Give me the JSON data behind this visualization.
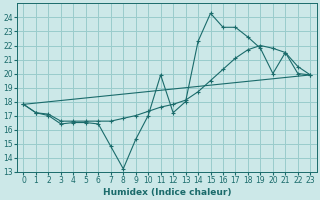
{
  "xlabel": "Humidex (Indice chaleur)",
  "bg_color": "#cce8e8",
  "grid_color": "#99cccc",
  "line_color": "#1a6b6b",
  "line1_x": [
    0,
    1,
    2,
    3,
    4,
    5,
    6,
    7,
    8,
    9,
    10,
    11,
    12,
    13,
    14,
    15,
    16,
    17,
    18,
    19,
    20,
    21,
    22,
    23
  ],
  "line1_y": [
    17.8,
    17.2,
    17.0,
    16.4,
    16.5,
    16.5,
    16.4,
    14.8,
    13.2,
    15.3,
    17.0,
    19.9,
    17.2,
    18.0,
    22.3,
    24.3,
    23.3,
    23.3,
    22.6,
    21.8,
    20.0,
    21.5,
    20.0,
    19.9
  ],
  "line2_x": [
    0,
    1,
    2,
    3,
    4,
    5,
    6,
    7,
    8,
    9,
    10,
    11,
    12,
    13,
    14,
    15,
    16,
    17,
    18,
    19,
    20,
    21,
    22,
    23
  ],
  "line2_y": [
    17.8,
    17.2,
    17.1,
    16.6,
    16.6,
    16.6,
    16.6,
    16.6,
    16.8,
    17.0,
    17.3,
    17.6,
    17.8,
    18.1,
    18.7,
    19.5,
    20.3,
    21.1,
    21.7,
    22.0,
    21.8,
    21.5,
    20.5,
    19.9
  ],
  "line3_x": [
    0,
    23
  ],
  "line3_y": [
    17.8,
    19.9
  ],
  "ylim": [
    13,
    25
  ],
  "xlim": [
    -0.5,
    23.5
  ],
  "yticks": [
    13,
    14,
    15,
    16,
    17,
    18,
    19,
    20,
    21,
    22,
    23,
    24
  ],
  "xticks": [
    0,
    1,
    2,
    3,
    4,
    5,
    6,
    7,
    8,
    9,
    10,
    11,
    12,
    13,
    14,
    15,
    16,
    17,
    18,
    19,
    20,
    21,
    22,
    23
  ],
  "tick_fontsize": 5.5,
  "xlabel_fontsize": 6.5
}
